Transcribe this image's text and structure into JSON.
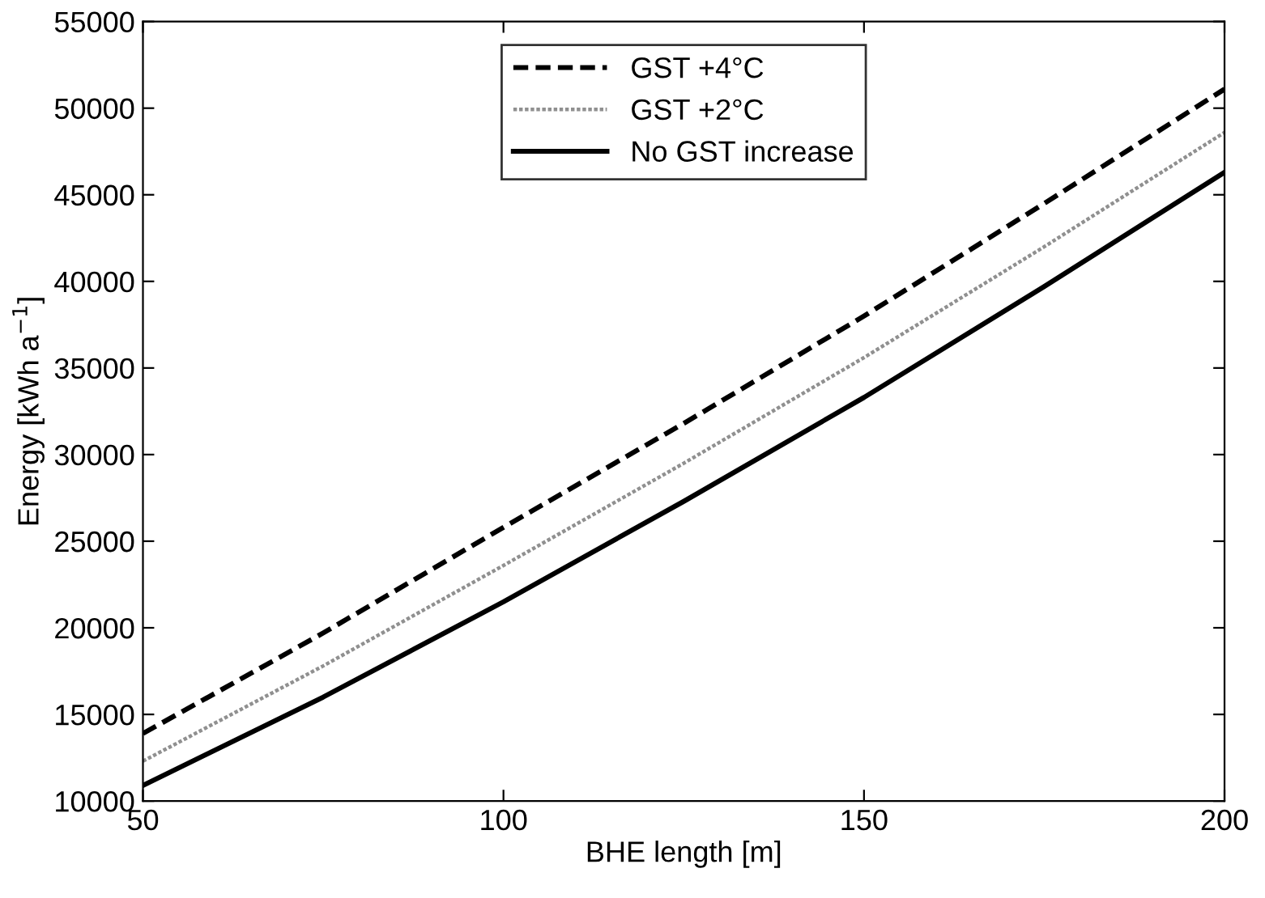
{
  "chart_data": {
    "type": "line",
    "xlabel": "BHE length [m]",
    "ylabel": "Energy [kWh a$^{−1}$]",
    "x": [
      50,
      75,
      100,
      125,
      150,
      175,
      200
    ],
    "series": [
      {
        "name": "GST +4°C",
        "color": "#000000",
        "line_style": "dashed",
        "values": [
          13900,
          19700,
          25800,
          31800,
          38000,
          44500,
          51100
        ]
      },
      {
        "name": "GST +2°C",
        "color": "#909090",
        "line_style": "dotted",
        "values": [
          12300,
          17800,
          23600,
          29500,
          35600,
          42000,
          48600
        ]
      },
      {
        "name": "No GST increase",
        "color": "#000000",
        "line_style": "solid",
        "values": [
          10900,
          16000,
          21500,
          27300,
          33300,
          39700,
          46300
        ]
      }
    ],
    "xlim": [
      50,
      200
    ],
    "xticks": [
      50,
      100,
      150,
      200
    ],
    "ylim": [
      10000,
      55000
    ],
    "yticks": [
      10000,
      15000,
      20000,
      25000,
      30000,
      35000,
      40000,
      45000,
      50000,
      55000
    ],
    "legend": "top",
    "grid": false
  }
}
